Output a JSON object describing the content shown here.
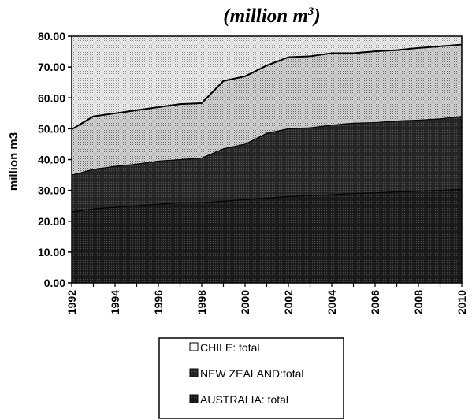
{
  "chart_data": {
    "type": "area",
    "stacked": true,
    "title": "(million m",
    "title_superscript": "3",
    "title_suffix": ")",
    "ylabel": "million m3",
    "xlabel": "",
    "xlim": [
      1992,
      2010
    ],
    "ylim": [
      0,
      80
    ],
    "yticks": [
      "0.00",
      "10.00",
      "20.00",
      "30.00",
      "40.00",
      "50.00",
      "60.00",
      "70.00",
      "80.00"
    ],
    "xticks": [
      "1992",
      "1994",
      "1996",
      "1998",
      "2000",
      "2002",
      "2004",
      "2006",
      "2008",
      "2010"
    ],
    "x": [
      1992,
      1993,
      1994,
      1995,
      1996,
      1997,
      1998,
      1999,
      2000,
      2001,
      2002,
      2003,
      2004,
      2005,
      2006,
      2007,
      2008,
      2009,
      2010
    ],
    "series": [
      {
        "name": "AUSTRALIA: total",
        "values": [
          23.0,
          24.0,
          24.5,
          25.0,
          25.5,
          26.0,
          26.0,
          26.5,
          27.0,
          27.5,
          28.0,
          28.3,
          28.6,
          29.0,
          29.2,
          29.5,
          29.7,
          30.0,
          30.3
        ]
      },
      {
        "name": "NEW ZEALAND:total",
        "values": [
          12.0,
          12.8,
          13.3,
          13.5,
          14.0,
          14.0,
          14.5,
          17.0,
          18.0,
          21.0,
          22.0,
          22.0,
          22.6,
          22.8,
          22.8,
          23.0,
          23.1,
          23.2,
          23.7
        ]
      },
      {
        "name": "CHILE: total",
        "values": [
          14.8,
          17.2,
          17.2,
          17.5,
          17.5,
          18.0,
          17.8,
          22.0,
          22.0,
          22.0,
          23.2,
          23.2,
          23.3,
          22.7,
          23.1,
          23.0,
          23.4,
          23.5,
          23.3
        ]
      }
    ],
    "remainder_to_top_pattern": "light-dots",
    "grid": false,
    "legend_position": "bottom-center",
    "legend_order": [
      "CHILE: total",
      "NEW ZEALAND:total",
      "AUSTRALIA: total"
    ]
  }
}
